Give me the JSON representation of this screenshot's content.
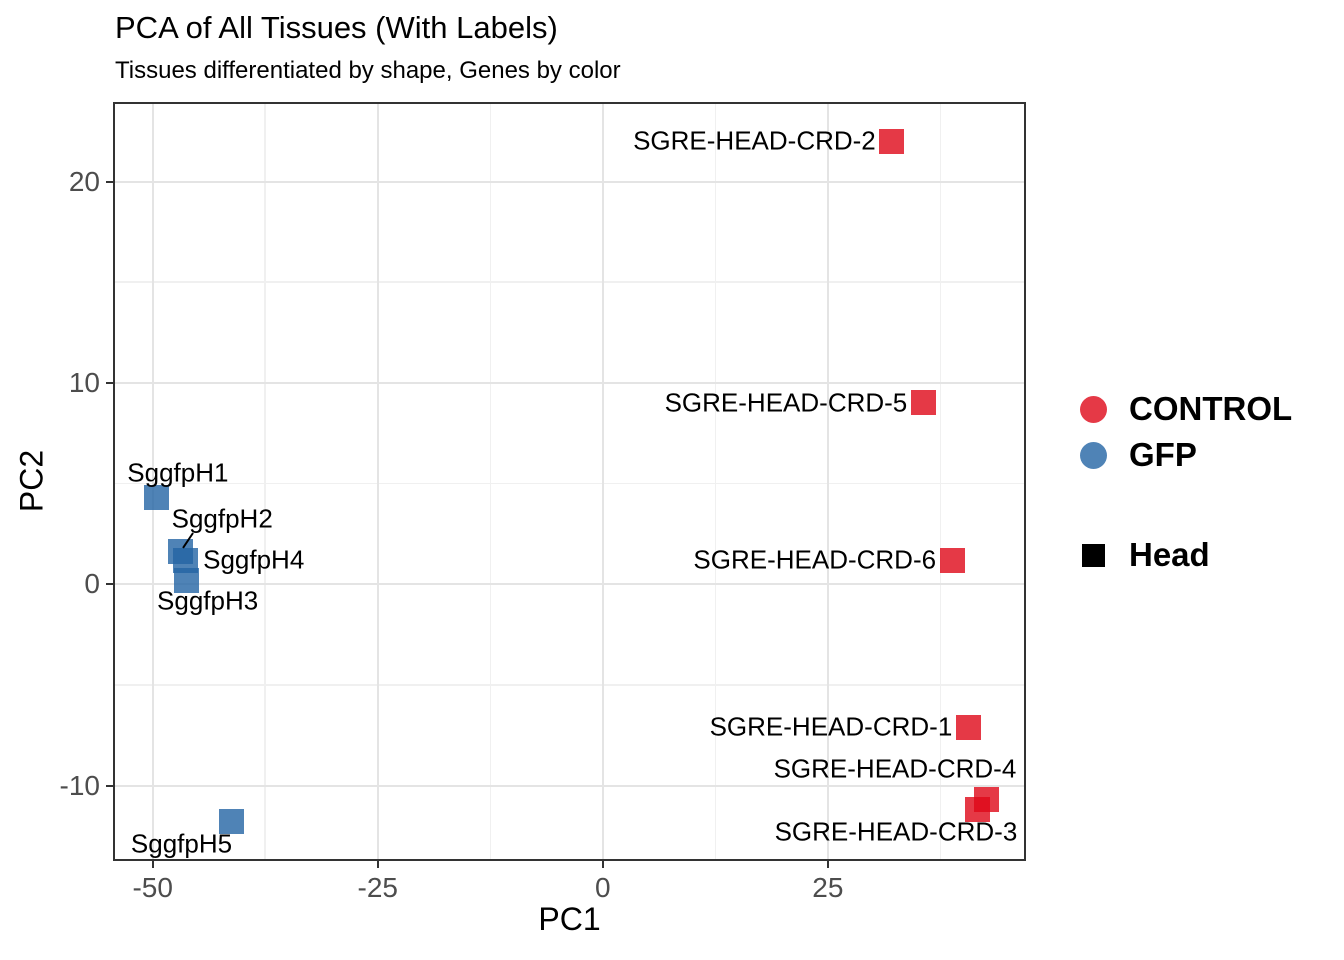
{
  "title": "PCA of All Tissues (With Labels)",
  "subtitle": "Tissues differentiated by shape, Genes by color",
  "colors": {
    "control_base": "#DE0818",
    "control_display": "#E63946",
    "gfp_base": "#2364A4",
    "gfp_display": "#4F83B6",
    "head_shape": "#000000",
    "grid_major": "#E4E4E4",
    "grid_minor": "#F0F0F0",
    "panel_border": "#333333",
    "axis_text": "#4D4D4D",
    "background": "#FFFFFF"
  },
  "chart_data": {
    "type": "scatter",
    "title": "PCA of All Tissues (With Labels)",
    "subtitle": "Tissues differentiated by shape, Genes by color",
    "xlabel": "PC1",
    "ylabel": "PC2",
    "xlim": [
      -54.3,
      46.9
    ],
    "ylim": [
      -13.7,
      23.9
    ],
    "x_major_ticks": [
      -50,
      -25,
      0,
      25
    ],
    "y_major_ticks": [
      -10,
      0,
      10,
      20
    ],
    "x_minor_ticks": [
      -37.5,
      -12.5,
      12.5,
      37.5
    ],
    "y_minor_ticks": [
      -5,
      5,
      15
    ],
    "grid": true,
    "legend_position": "right",
    "point_shape": "square",
    "point_alpha": 0.8,
    "series": [
      {
        "name": "CONTROL",
        "tissue": "Head",
        "color": "#DE0818",
        "points": [
          {
            "name": "SGRE-HEAD-CRD-2",
            "x": 32.1,
            "y": 22.0,
            "label": {
              "anchor": "end",
              "dx": -16,
              "dy": 0
            }
          },
          {
            "name": "SGRE-HEAD-CRD-5",
            "x": 35.6,
            "y": 9.0,
            "label": {
              "anchor": "end",
              "dx": -16,
              "dy": 0
            }
          },
          {
            "name": "SGRE-HEAD-CRD-6",
            "x": 38.8,
            "y": 1.2,
            "label": {
              "anchor": "end",
              "dx": -16,
              "dy": 0
            }
          },
          {
            "name": "SGRE-HEAD-CRD-1",
            "x": 40.6,
            "y": -7.1,
            "label": {
              "anchor": "end",
              "dx": -16,
              "dy": 0
            }
          },
          {
            "name": "SGRE-HEAD-CRD-4",
            "x": 42.6,
            "y": -10.7,
            "label": {
              "anchor": "end",
              "dx": 30,
              "dy": -31
            }
          },
          {
            "name": "SGRE-HEAD-CRD-3",
            "x": 41.6,
            "y": -11.2,
            "label": {
              "anchor": "end",
              "dx": 40,
              "dy": 22
            }
          }
        ]
      },
      {
        "name": "GFP",
        "tissue": "Head",
        "color": "#2364A4",
        "points": [
          {
            "name": "SggfpH1",
            "x": -49.6,
            "y": 4.3,
            "label": {
              "anchor": "start",
              "dx": -29,
              "dy": -25
            }
          },
          {
            "name": "SggfpH2",
            "x": -46.9,
            "y": 1.6,
            "label": {
              "anchor": "start",
              "dx": -9,
              "dy": -33
            },
            "leader": {
              "x1": 12,
              "y1": -19,
              "x2": 2,
              "y2": -4
            }
          },
          {
            "name": "SggfpH4",
            "x": -46.4,
            "y": 1.2,
            "label": {
              "anchor": "start",
              "dx": 18,
              "dy": 0
            }
          },
          {
            "name": "SggfpH3",
            "x": -46.3,
            "y": 0.2,
            "label": {
              "anchor": "start",
              "dx": -29,
              "dy": 21
            }
          },
          {
            "name": "SggfpH5",
            "x": -41.2,
            "y": -11.8,
            "label": {
              "anchor": "start",
              "dx": -101,
              "dy": 22
            }
          }
        ]
      }
    ],
    "legend": {
      "color_items": [
        {
          "label": "CONTROL",
          "color": "#DE0818"
        },
        {
          "label": "GFP",
          "color": "#2364A4"
        }
      ],
      "shape_items": [
        {
          "label": "Head",
          "color": "#000000"
        }
      ]
    }
  }
}
